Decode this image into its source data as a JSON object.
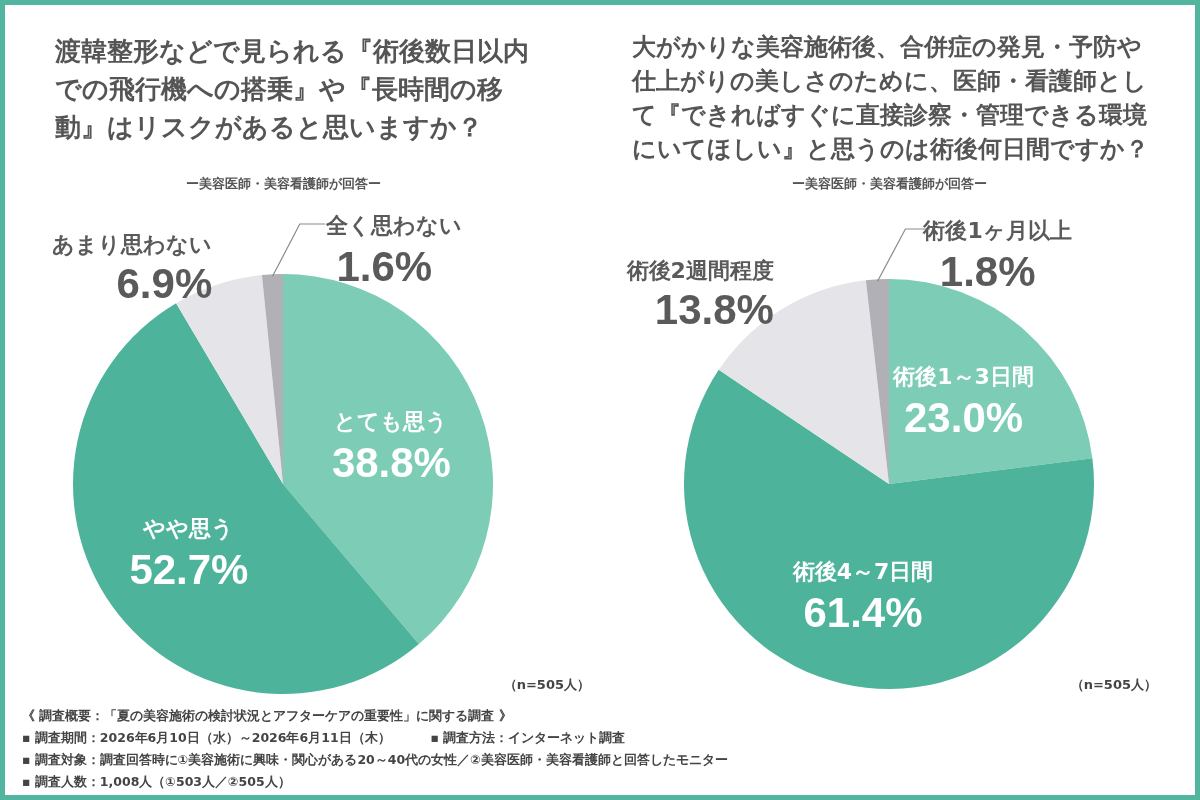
{
  "chart_data": [
    {
      "type": "pie",
      "title": "渡韓整形などで見られる『術後数日以内での飛行機への搭乗』や『長時間の移動』はリスクがあると思いますか？",
      "subtitle": "ー美容医師・美容看護師が回答ー",
      "categories": [
        "とても思う",
        "やや思う",
        "あまり思わない",
        "全く思わない"
      ],
      "values": [
        38.8,
        52.7,
        6.9,
        1.6
      ],
      "colors": [
        "#7dccb6",
        "#4db39b",
        "#e5e5e9",
        "#b1b0b7"
      ],
      "value_labels": [
        "38.8%",
        "52.7%",
        "6.9%",
        "1.6%"
      ],
      "annotations": [
        "（n=505人）",
        "《 調査概要：「夏の美容施術の検討状況とアフターケアの重要性」に関する調査 》",
        "▪ 調査期間：2026年6月10日（水）～2026年6月11日（木）",
        "▪ 調査方法：インターネット調査",
        "▪ 調査対象：調査回答時に①美容施術に興味・関心がある20～40代の女性／②美容医師・美容看護師と回答したモニター",
        "▪ 調査人数：1,008人（①503人／②505人）"
      ]
    },
    {
      "type": "pie",
      "title": "大がかりな美容施術後、合併症の発見・予防や仕上がりの美しさのために、医師・看護師として『できればすぐに直接診察・管理できる環境にいてほしい』と思うのは術後何日間ですか？",
      "subtitle": "ー美容医師・美容看護師が回答ー",
      "categories": [
        "術後1～3日間",
        "術後4～7日間",
        "術後2週間程度",
        "術後1ヶ月以上"
      ],
      "values": [
        23.0,
        61.4,
        13.8,
        1.8
      ],
      "colors": [
        "#7dccb6",
        "#4db39b",
        "#e5e5e9",
        "#b1b0b7"
      ],
      "value_labels": [
        "23.0%",
        "61.4%",
        "13.8%",
        "1.8%"
      ],
      "annotations": [
        "（n=505人）"
      ]
    }
  ]
}
